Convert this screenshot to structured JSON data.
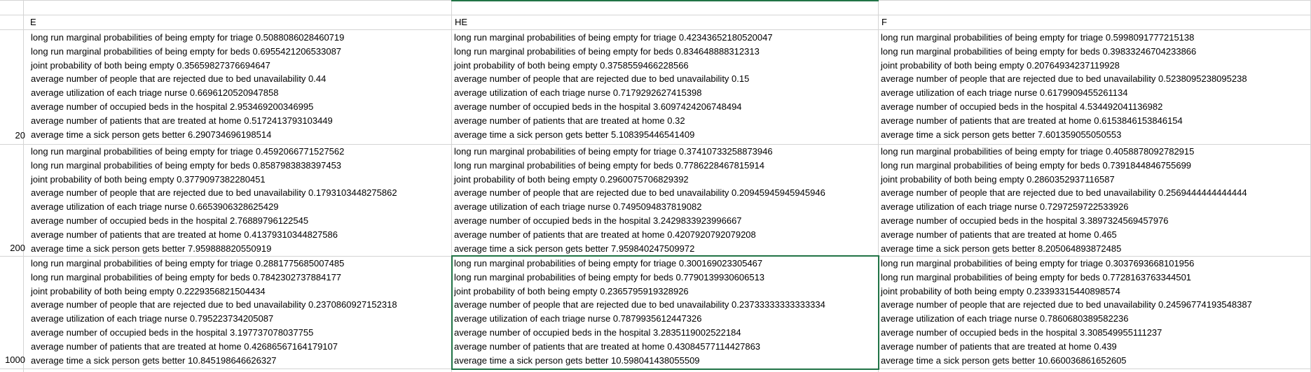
{
  "columns": [
    "E",
    "HE",
    "F"
  ],
  "row_labels": [
    "20",
    "200",
    "1000"
  ],
  "blocks": [
    {
      "E": [
        "long run marginal probabilities of being empty for triage 0.5088086028460719",
        "long run marginal probabilities of being empty for beds 0.6955421206533087",
        "joint probability of both being empty 0.35659827376694647",
        "average number of people that are rejected due to bed unavailability 0.44",
        "average utilization of each triage nurse 0.6696120520947858",
        "average number of occupied beds in the hospital 2.953469200346995",
        "average number of patients that are treated at home 0.5172413793103449",
        "average time a sick person gets better 6.290734696198514"
      ],
      "HE": [
        "long run marginal probabilities of being empty for triage 0.42343652180520047",
        "long run marginal probabilities of being empty for beds 0.834648888312313",
        "joint probability of both being empty 0.3758559466228566",
        "average number of people that are rejected due to bed unavailability 0.15",
        "average utilization of each triage nurse 0.7179292627415398",
        "average number of occupied beds in the hospital 3.6097424206748494",
        "average number of patients that are treated at home 0.32",
        "average time a sick person gets better 5.108395446541409"
      ],
      "F": [
        "long run marginal probabilities of being empty for triage 0.5998091777215138",
        "long run marginal probabilities of being empty for beds 0.39833246704233866",
        "joint probability of both being empty 0.20764934237119928",
        "average number of people that are rejected due to bed unavailability 0.5238095238095238",
        "average utilization of each triage nurse 0.6179909455261134",
        "average number of occupied beds in the hospital 4.534492041136982",
        "average number of patients that are treated at home 0.6153846153846154",
        "average time a sick person gets better 7.601359055050553"
      ]
    },
    {
      "E": [
        "long run marginal probabilities of being empty for triage 0.4592066771527562",
        "long run marginal probabilities of being empty for beds 0.8587983838397453",
        "joint probability of both being empty 0.3779097382280451",
        "average number of people that are rejected due to bed unavailability 0.1793103448275862",
        "average utilization of each triage nurse 0.6653906328625429",
        "average number of occupied beds in the hospital 2.76889796122545",
        "average number of patients that are treated at home 0.41379310344827586",
        "average time a sick person gets better 7.959888820550919"
      ],
      "HE": [
        "long run marginal probabilities of being empty for triage 0.37410733258873946",
        "long run marginal probabilities of being empty for beds 0.7786228467815914",
        "joint probability of both being empty 0.2960075706829392",
        "average number of people that are rejected due to bed unavailability 0.20945945945945946",
        "average utilization of each triage nurse 0.7495094837819082",
        "average number of occupied beds in the hospital 3.2429833923996667",
        "average number of patients that are treated at home 0.4207920792079208",
        "average time a sick person gets better 7.959840247509972"
      ],
      "F": [
        "long run marginal probabilities of being empty for triage 0.4058878092782915",
        "long run marginal probabilities of being empty for beds 0.7391844846755699",
        "joint probability of both being empty 0.2860352937116587",
        "average number of people that are rejected due to bed unavailability 0.2569444444444444",
        "average utilization of each triage nurse 0.7297259722533926",
        "average number of occupied beds in the hospital 3.3897324569457976",
        "average number of patients that are treated at home 0.465",
        "average time a sick person gets better 8.205064893872485"
      ]
    },
    {
      "E": [
        "long run marginal probabilities of being empty for triage 0.2881775685007485",
        "long run marginal probabilities of being empty for beds 0.7842302737884177",
        "joint probability of both being empty 0.2229356821504434",
        "average number of people that are rejected due to bed unavailability 0.2370860927152318",
        "average utilization of each triage nurse 0.795223734205087",
        "average number of occupied beds in the hospital 3.197737078037755",
        "average number of patients that are treated at home 0.42686567164179107",
        "average time a sick person gets better 10.845198646626327"
      ],
      "HE": [
        "long run marginal probabilities of being empty for triage 0.300169023305467",
        "long run marginal probabilities of being empty for beds 0.7790139930606513",
        "joint probability of both being empty 0.2365795919328926",
        "average number of people that are rejected due to bed unavailability 0.23733333333333334",
        "average utilization of each triage nurse 0.7879935612447326",
        "average number of occupied beds in the hospital 3.2835119002522184",
        "average number of patients that are treated at home 0.43084577114427863",
        "average time a sick person gets better 10.598041438055509"
      ],
      "F": [
        "long run marginal probabilities of being empty for triage 0.3037693668101956",
        "long run marginal probabilities of being empty for beds 0.7728163763344501",
        "joint probability of both being empty 0.23393315440898574",
        "average number of people that are rejected due to bed unavailability 0.24596774193548387",
        "average utilization of each triage nurse 0.7860680389582236",
        "average number of occupied beds in the hospital 3.308549955111237",
        "average number of patients that are treated at home 0.439",
        "average time a sick person gets better 10.660036861652605"
      ]
    }
  ],
  "colors": {
    "gridline": "#d4d4d4",
    "selection": "#217346"
  }
}
